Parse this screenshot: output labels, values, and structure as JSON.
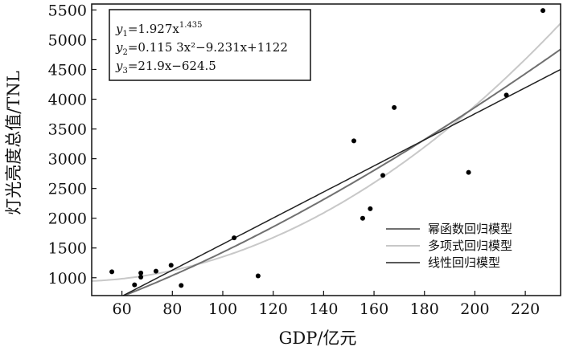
{
  "chart_data": {
    "type": "scatter",
    "xlabel": "GDP/亿元",
    "ylabel": "灯光亮度总值/TNL",
    "xlim": [
      48,
      234
    ],
    "ylim": [
      700,
      5600
    ],
    "xticks": [
      60,
      80,
      100,
      120,
      140,
      160,
      180,
      200,
      220
    ],
    "yticks": [
      1000,
      1500,
      2000,
      2500,
      3000,
      3500,
      4000,
      4500,
      5000,
      5500
    ],
    "grid": false,
    "legend_position": "bottom-right",
    "equations": [
      {
        "text": "y",
        "sub": "1",
        "rest": "=1.927x",
        "sup": "1.435"
      },
      {
        "text": "y",
        "sub": "2",
        "rest": "=0.115 3x²−9.231x+1122",
        "sup": ""
      },
      {
        "text": "y",
        "sub": "3",
        "rest": "=21.9x−624.5",
        "sup": ""
      }
    ],
    "points": [
      {
        "x": 56,
        "y": 1100
      },
      {
        "x": 65,
        "y": 880
      },
      {
        "x": 67.5,
        "y": 1080
      },
      {
        "x": 67.5,
        "y": 1010
      },
      {
        "x": 73.5,
        "y": 1110
      },
      {
        "x": 79.5,
        "y": 1210
      },
      {
        "x": 83.5,
        "y": 870
      },
      {
        "x": 104.5,
        "y": 1670
      },
      {
        "x": 114,
        "y": 1030
      },
      {
        "x": 152,
        "y": 3300
      },
      {
        "x": 155.5,
        "y": 2000
      },
      {
        "x": 158.5,
        "y": 2160
      },
      {
        "x": 163.5,
        "y": 2720
      },
      {
        "x": 168,
        "y": 3860
      },
      {
        "x": 197.5,
        "y": 2770
      },
      {
        "x": 212.5,
        "y": 4070
      },
      {
        "x": 227,
        "y": 5490
      }
    ],
    "series": [
      {
        "name": "幂函数回归模型",
        "color": "#707070",
        "model": "power",
        "a": 1.927,
        "b": 1.435
      },
      {
        "name": "多项式回归模型",
        "color": "#c8c8c8",
        "model": "poly",
        "a": 0.1153,
        "b": -9.231,
        "c": 1122
      },
      {
        "name": "线性回归模型",
        "color": "#222222",
        "model": "linear",
        "m": 21.9,
        "b0": -624.5
      }
    ]
  }
}
